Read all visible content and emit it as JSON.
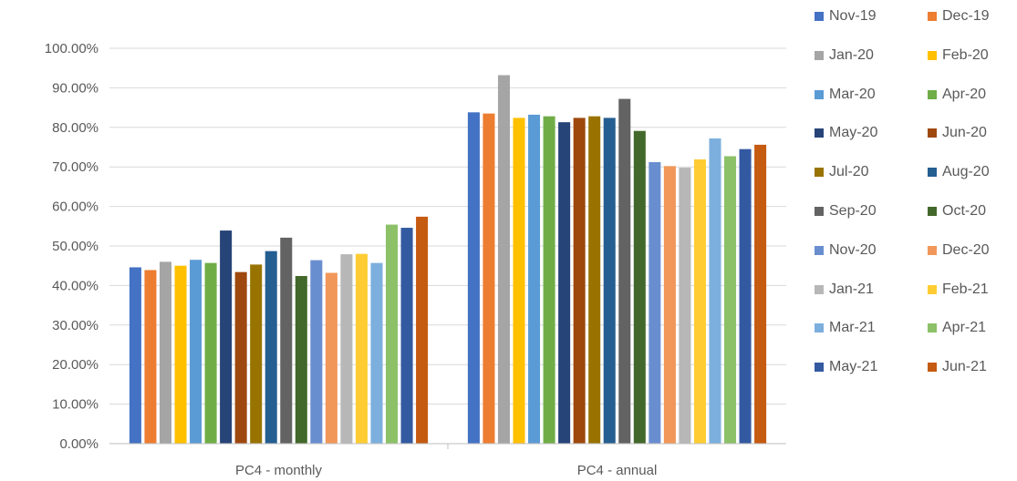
{
  "chart_data": {
    "type": "bar",
    "title": "",
    "xlabel": "",
    "ylabel": "",
    "ylim": [
      0,
      1.0
    ],
    "y_tick_labels": [
      "0.00%",
      "10.00%",
      "20.00%",
      "30.00%",
      "40.00%",
      "50.00%",
      "60.00%",
      "70.00%",
      "80.00%",
      "90.00%",
      "100.00%"
    ],
    "grid": true,
    "legend_position": "right",
    "categories": [
      "PC4 - monthly",
      "PC4 - annual"
    ],
    "series": [
      {
        "name": "Nov-19",
        "color": "#4472C4",
        "values": [
          0.446,
          0.838
        ]
      },
      {
        "name": "Dec-19",
        "color": "#ED7D31",
        "values": [
          0.439,
          0.835
        ]
      },
      {
        "name": "Jan-20",
        "color": "#A5A5A5",
        "values": [
          0.46,
          0.932
        ]
      },
      {
        "name": "Feb-20",
        "color": "#FFC000",
        "values": [
          0.45,
          0.824
        ]
      },
      {
        "name": "Mar-20",
        "color": "#5B9BD5",
        "values": [
          0.465,
          0.832
        ]
      },
      {
        "name": "Apr-20",
        "color": "#70AD47",
        "values": [
          0.457,
          0.828
        ]
      },
      {
        "name": "May-20",
        "color": "#264478",
        "values": [
          0.539,
          0.813
        ]
      },
      {
        "name": "Jun-20",
        "color": "#9E480E",
        "values": [
          0.434,
          0.824
        ]
      },
      {
        "name": "Jul-20",
        "color": "#997300",
        "values": [
          0.453,
          0.828
        ]
      },
      {
        "name": "Aug-20",
        "color": "#255E91",
        "values": [
          0.487,
          0.824
        ]
      },
      {
        "name": "Sep-20",
        "color": "#636363",
        "values": [
          0.521,
          0.872
        ]
      },
      {
        "name": "Oct-20",
        "color": "#43682B",
        "values": [
          0.424,
          0.791
        ]
      },
      {
        "name": "Nov-20",
        "color": "#698ED0",
        "values": [
          0.464,
          0.712
        ]
      },
      {
        "name": "Dec-20",
        "color": "#F1975A",
        "values": [
          0.432,
          0.702
        ]
      },
      {
        "name": "Jan-21",
        "color": "#B7B7B7",
        "values": [
          0.479,
          0.698
        ]
      },
      {
        "name": "Feb-21",
        "color": "#FFCD33",
        "values": [
          0.48,
          0.719
        ]
      },
      {
        "name": "Mar-21",
        "color": "#7CAFDD",
        "values": [
          0.457,
          0.772
        ]
      },
      {
        "name": "Apr-21",
        "color": "#8CC168",
        "values": [
          0.554,
          0.727
        ]
      },
      {
        "name": "May-21",
        "color": "#335AA1",
        "values": [
          0.546,
          0.745
        ]
      },
      {
        "name": "Jun-21",
        "color": "#C55A11",
        "values": [
          0.574,
          0.756
        ]
      }
    ]
  }
}
